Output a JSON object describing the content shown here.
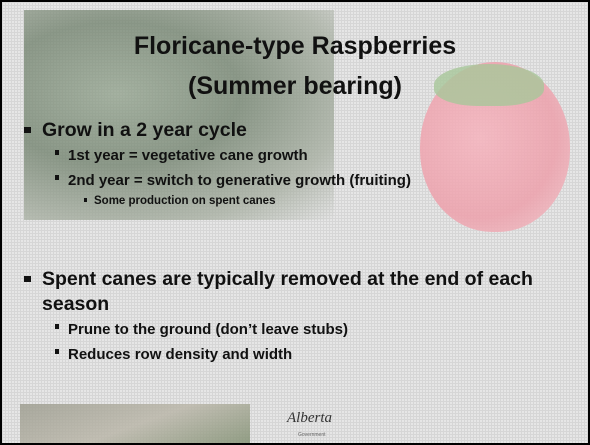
{
  "title": [
    "Floricane-type Raspberries",
    "(Summer bearing)"
  ],
  "bullets": [
    {
      "text": "Grow in a 2 year cycle",
      "children": [
        {
          "text": "1st year = vegetative cane growth"
        },
        {
          "text": "2nd year = switch to generative growth (fruiting)",
          "children": [
            {
              "text": "Some production on spent canes"
            }
          ]
        }
      ]
    },
    {
      "text": "Spent canes are typically removed at the end of each season",
      "children": [
        {
          "text": "Prune to the ground (don’t leave stubs)"
        },
        {
          "text": "Reduces row density and width"
        }
      ]
    }
  ],
  "logo": {
    "name": "Alberta",
    "subtitle": "Government"
  }
}
